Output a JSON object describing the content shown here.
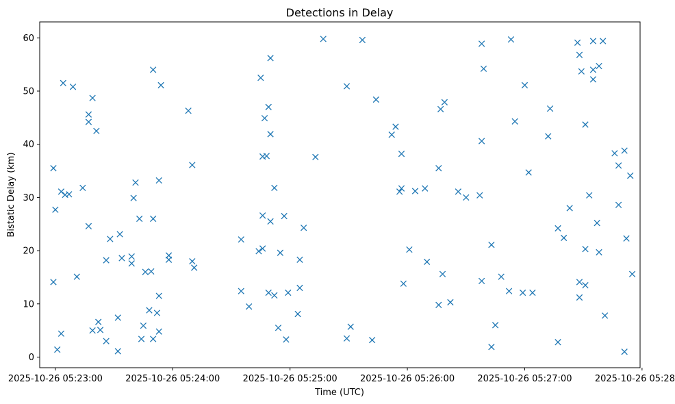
{
  "chart_data": {
    "type": "scatter",
    "title": "Detections in Delay",
    "xlabel": "Time (UTC)",
    "ylabel": "Bistatic Delay (km)",
    "marker": "x",
    "color": "#1f77b4",
    "grid": false,
    "x_range": [
      "2025-10-26 05:22:52",
      "2025-10-26 05:27:59"
    ],
    "ylim": [
      -2,
      63
    ],
    "x_ticks": [
      {
        "value": "2025-10-26 05:23:00",
        "label": "2025-10-26 05:23:00"
      },
      {
        "value": "2025-10-26 05:24:00",
        "label": "2025-10-26 05:24:00"
      },
      {
        "value": "2025-10-26 05:25:00",
        "label": "2025-10-26 05:25:00"
      },
      {
        "value": "2025-10-26 05:26:00",
        "label": "2025-10-26 05:26:00"
      },
      {
        "value": "2025-10-26 05:27:00",
        "label": "2025-10-26 05:27:00"
      },
      {
        "value": "2025-10-26 05:28:00",
        "label": "2025-10-26 05:28:00"
      }
    ],
    "y_ticks": [
      0,
      10,
      20,
      30,
      40,
      50,
      60
    ],
    "series": [
      {
        "points": [
          [
            "2025-10-26 05:22:59",
            35.5
          ],
          [
            "2025-10-26 05:22:59",
            14.1
          ],
          [
            "2025-10-26 05:23:00",
            27.7
          ],
          [
            "2025-10-26 05:23:01",
            1.4
          ],
          [
            "2025-10-26 05:23:03",
            31.1
          ],
          [
            "2025-10-26 05:23:03",
            4.4
          ],
          [
            "2025-10-26 05:23:04",
            51.5
          ],
          [
            "2025-10-26 05:23:05",
            30.5
          ],
          [
            "2025-10-26 05:23:07",
            30.6
          ],
          [
            "2025-10-26 05:23:09",
            50.8
          ],
          [
            "2025-10-26 05:23:11",
            15.1
          ],
          [
            "2025-10-26 05:23:14",
            31.8
          ],
          [
            "2025-10-26 05:23:17",
            45.6
          ],
          [
            "2025-10-26 05:23:17",
            44.2
          ],
          [
            "2025-10-26 05:23:17",
            24.6
          ],
          [
            "2025-10-26 05:23:19",
            48.7
          ],
          [
            "2025-10-26 05:23:19",
            5.0
          ],
          [
            "2025-10-26 05:23:21",
            42.5
          ],
          [
            "2025-10-26 05:23:22",
            6.6
          ],
          [
            "2025-10-26 05:23:23",
            5.1
          ],
          [
            "2025-10-26 05:23:26",
            3.0
          ],
          [
            "2025-10-26 05:23:26",
            18.2
          ],
          [
            "2025-10-26 05:23:28",
            22.2
          ],
          [
            "2025-10-26 05:23:32",
            7.4
          ],
          [
            "2025-10-26 05:23:32",
            1.1
          ],
          [
            "2025-10-26 05:23:33",
            23.1
          ],
          [
            "2025-10-26 05:23:34",
            18.6
          ],
          [
            "2025-10-26 05:23:39",
            18.9
          ],
          [
            "2025-10-26 05:23:39",
            17.6
          ],
          [
            "2025-10-26 05:23:40",
            29.9
          ],
          [
            "2025-10-26 05:23:41",
            32.8
          ],
          [
            "2025-10-26 05:23:43",
            26.0
          ],
          [
            "2025-10-26 05:23:44",
            3.4
          ],
          [
            "2025-10-26 05:23:45",
            5.9
          ],
          [
            "2025-10-26 05:23:46",
            16.0
          ],
          [
            "2025-10-26 05:23:48",
            8.8
          ],
          [
            "2025-10-26 05:23:49",
            16.1
          ],
          [
            "2025-10-26 05:23:50",
            54.0
          ],
          [
            "2025-10-26 05:23:50",
            26.0
          ],
          [
            "2025-10-26 05:23:50",
            3.4
          ],
          [
            "2025-10-26 05:23:52",
            8.3
          ],
          [
            "2025-10-26 05:23:53",
            33.2
          ],
          [
            "2025-10-26 05:23:53",
            11.5
          ],
          [
            "2025-10-26 05:23:53",
            4.8
          ],
          [
            "2025-10-26 05:23:54",
            51.1
          ],
          [
            "2025-10-26 05:23:58",
            19.1
          ],
          [
            "2025-10-26 05:23:58",
            18.3
          ],
          [
            "2025-10-26 05:24:08",
            46.3
          ],
          [
            "2025-10-26 05:24:10",
            36.1
          ],
          [
            "2025-10-26 05:24:10",
            18.0
          ],
          [
            "2025-10-26 05:24:11",
            16.8
          ],
          [
            "2025-10-26 05:24:35",
            22.1
          ],
          [
            "2025-10-26 05:24:35",
            12.4
          ],
          [
            "2025-10-26 05:24:39",
            9.5
          ],
          [
            "2025-10-26 05:24:45",
            52.5
          ],
          [
            "2025-10-26 05:24:44",
            19.9
          ],
          [
            "2025-10-26 05:24:46",
            37.7
          ],
          [
            "2025-10-26 05:24:46",
            26.6
          ],
          [
            "2025-10-26 05:24:46",
            20.4
          ],
          [
            "2025-10-26 05:24:47",
            44.9
          ],
          [
            "2025-10-26 05:24:48",
            37.8
          ],
          [
            "2025-10-26 05:24:49",
            47.0
          ],
          [
            "2025-10-26 05:24:49",
            12.1
          ],
          [
            "2025-10-26 05:24:50",
            56.2
          ],
          [
            "2025-10-26 05:24:50",
            41.9
          ],
          [
            "2025-10-26 05:24:50",
            25.5
          ],
          [
            "2025-10-26 05:24:52",
            31.8
          ],
          [
            "2025-10-26 05:24:52",
            11.6
          ],
          [
            "2025-10-26 05:24:54",
            5.5
          ],
          [
            "2025-10-26 05:24:55",
            19.6
          ],
          [
            "2025-10-26 05:24:57",
            26.5
          ],
          [
            "2025-10-26 05:24:58",
            3.3
          ],
          [
            "2025-10-26 05:24:59",
            12.1
          ],
          [
            "2025-10-26 05:25:04",
            8.1
          ],
          [
            "2025-10-26 05:25:05",
            18.3
          ],
          [
            "2025-10-26 05:25:05",
            13.0
          ],
          [
            "2025-10-26 05:25:07",
            24.3
          ],
          [
            "2025-10-26 05:25:13",
            37.6
          ],
          [
            "2025-10-26 05:25:17",
            59.8
          ],
          [
            "2025-10-26 05:25:29",
            50.9
          ],
          [
            "2025-10-26 05:25:29",
            3.5
          ],
          [
            "2025-10-26 05:25:31",
            5.7
          ],
          [
            "2025-10-26 05:25:37",
            59.6
          ],
          [
            "2025-10-26 05:25:42",
            3.2
          ],
          [
            "2025-10-26 05:25:44",
            48.4
          ],
          [
            "2025-10-26 05:25:52",
            41.8
          ],
          [
            "2025-10-26 05:25:54",
            43.3
          ],
          [
            "2025-10-26 05:25:56",
            31.1
          ],
          [
            "2025-10-26 05:25:57",
            38.2
          ],
          [
            "2025-10-26 05:25:57",
            31.7
          ],
          [
            "2025-10-26 05:25:58",
            13.8
          ],
          [
            "2025-10-26 05:26:01",
            20.2
          ],
          [
            "2025-10-26 05:26:04",
            31.2
          ],
          [
            "2025-10-26 05:26:09",
            31.7
          ],
          [
            "2025-10-26 05:26:10",
            17.9
          ],
          [
            "2025-10-26 05:26:16",
            35.5
          ],
          [
            "2025-10-26 05:26:16",
            9.8
          ],
          [
            "2025-10-26 05:26:17",
            46.6
          ],
          [
            "2025-10-26 05:26:18",
            15.6
          ],
          [
            "2025-10-26 05:26:19",
            47.9
          ],
          [
            "2025-10-26 05:26:22",
            10.3
          ],
          [
            "2025-10-26 05:26:26",
            31.1
          ],
          [
            "2025-10-26 05:26:30",
            30.0
          ],
          [
            "2025-10-26 05:26:37",
            30.4
          ],
          [
            "2025-10-26 05:26:38",
            58.9
          ],
          [
            "2025-10-26 05:26:38",
            40.6
          ],
          [
            "2025-10-26 05:26:38",
            14.3
          ],
          [
            "2025-10-26 05:26:39",
            54.2
          ],
          [
            "2025-10-26 05:26:43",
            21.1
          ],
          [
            "2025-10-26 05:26:43",
            1.9
          ],
          [
            "2025-10-26 05:26:45",
            6.0
          ],
          [
            "2025-10-26 05:26:48",
            15.1
          ],
          [
            "2025-10-26 05:26:52",
            12.4
          ],
          [
            "2025-10-26 05:26:53",
            59.7
          ],
          [
            "2025-10-26 05:26:55",
            44.3
          ],
          [
            "2025-10-26 05:26:59",
            12.1
          ],
          [
            "2025-10-26 05:27:00",
            51.1
          ],
          [
            "2025-10-26 05:27:02",
            34.7
          ],
          [
            "2025-10-26 05:27:04",
            12.1
          ],
          [
            "2025-10-26 05:27:12",
            41.5
          ],
          [
            "2025-10-26 05:27:13",
            46.7
          ],
          [
            "2025-10-26 05:27:17",
            24.2
          ],
          [
            "2025-10-26 05:27:17",
            2.8
          ],
          [
            "2025-10-26 05:27:20",
            22.4
          ],
          [
            "2025-10-26 05:27:23",
            28.0
          ],
          [
            "2025-10-26 05:27:27",
            59.1
          ],
          [
            "2025-10-26 05:27:28",
            14.1
          ],
          [
            "2025-10-26 05:27:28",
            11.2
          ],
          [
            "2025-10-26 05:27:28",
            56.8
          ],
          [
            "2025-10-26 05:27:29",
            53.7
          ],
          [
            "2025-10-26 05:27:31",
            43.7
          ],
          [
            "2025-10-26 05:27:31",
            20.3
          ],
          [
            "2025-10-26 05:27:31",
            13.5
          ],
          [
            "2025-10-26 05:27:33",
            30.4
          ],
          [
            "2025-10-26 05:27:35",
            59.4
          ],
          [
            "2025-10-26 05:27:35",
            54.0
          ],
          [
            "2025-10-26 05:27:35",
            52.2
          ],
          [
            "2025-10-26 05:27:38",
            54.7
          ],
          [
            "2025-10-26 05:27:37",
            25.2
          ],
          [
            "2025-10-26 05:27:38",
            19.7
          ],
          [
            "2025-10-26 05:27:40",
            59.4
          ],
          [
            "2025-10-26 05:27:41",
            7.8
          ],
          [
            "2025-10-26 05:27:46",
            38.3
          ],
          [
            "2025-10-26 05:27:48",
            28.6
          ],
          [
            "2025-10-26 05:27:48",
            36.0
          ],
          [
            "2025-10-26 05:27:51",
            38.8
          ],
          [
            "2025-10-26 05:27:51",
            1.0
          ],
          [
            "2025-10-26 05:27:52",
            22.3
          ],
          [
            "2025-10-26 05:27:54",
            34.1
          ],
          [
            "2025-10-26 05:27:55",
            15.6
          ]
        ]
      }
    ]
  }
}
